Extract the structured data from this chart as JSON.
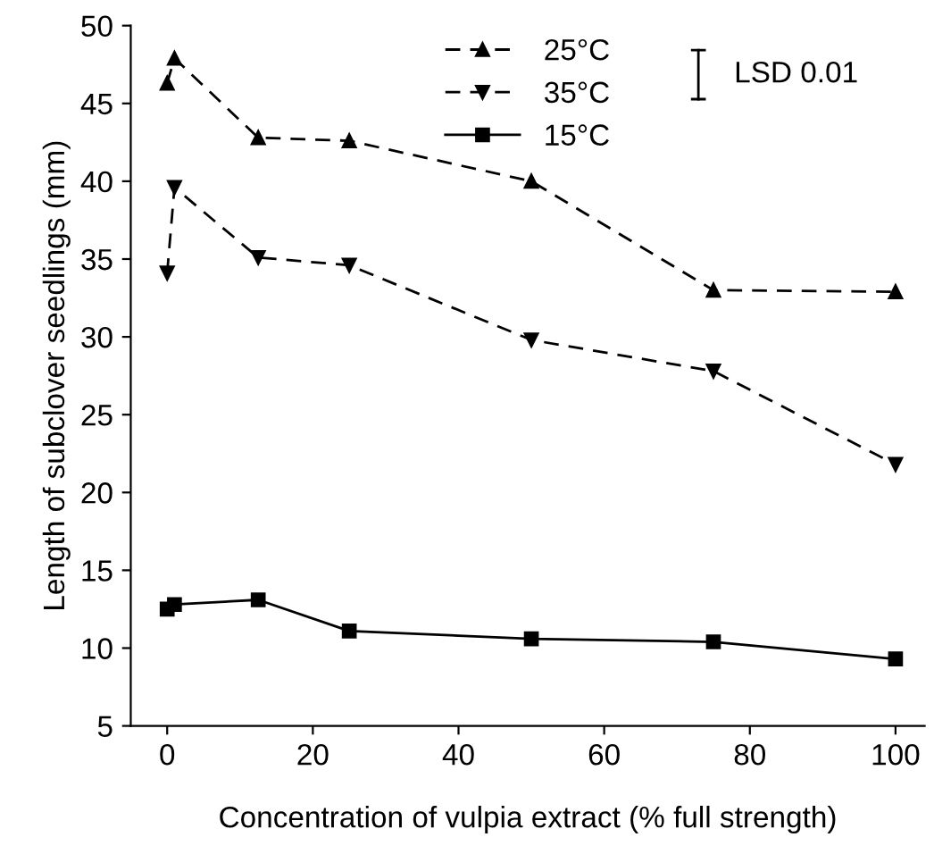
{
  "chart_data": {
    "type": "line",
    "xlabel": "Concentration of vulpia extract (% full strength)",
    "ylabel": "Length of subclover seedlings (mm)",
    "x": [
      0,
      1,
      12.5,
      25,
      50,
      75,
      100
    ],
    "series": [
      {
        "name": "25°C",
        "color": "#000000",
        "marker": "triangle",
        "line_style": "dashed",
        "values": [
          46.3,
          47.9,
          42.8,
          42.6,
          40.0,
          33.0,
          32.9
        ]
      },
      {
        "name": "35°C",
        "color": "#000000",
        "marker": "triangle_down",
        "line_style": "dashed",
        "values": [
          34.1,
          39.6,
          35.1,
          34.6,
          29.8,
          27.8,
          21.8
        ]
      },
      {
        "name": "15°C",
        "color": "#000000",
        "marker": "square",
        "line_style": "solid",
        "values": [
          12.5,
          12.8,
          13.1,
          11.1,
          10.6,
          10.4,
          9.3
        ]
      }
    ],
    "annotations": [
      "LSD 0.01"
    ],
    "xlim": [
      -5,
      104
    ],
    "xticks": [
      0,
      20,
      40,
      60,
      80,
      100
    ],
    "ylim": [
      5,
      50
    ],
    "yticks": [
      5,
      10,
      15,
      20,
      25,
      30,
      35,
      40,
      45,
      50
    ],
    "grid": false,
    "legend": "top"
  }
}
